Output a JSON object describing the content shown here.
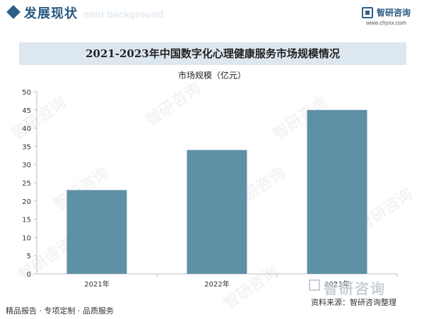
{
  "header": {
    "section_title": "发展现状",
    "section_title_ghost": "nent background",
    "brand_name": "智研咨询",
    "brand_url": "www.chyxx.com"
  },
  "watermark": {
    "text": "智研咨询"
  },
  "footer": {
    "left_text": "精品报告 · 专项定制 · 品质服务",
    "brand": "智研咨询",
    "source": "资料来源：智研咨询整理"
  },
  "colors": {
    "bar": "#5e90a6",
    "accent": "#2a5a82",
    "title_band": "#dde7ef"
  },
  "chart_data": {
    "type": "bar",
    "title": "2021-2023年中国数字化心理健康服务市场规模情况",
    "unit_label": "市场规模（亿元）",
    "categories": [
      "2021年",
      "2022年",
      "2023年"
    ],
    "values": [
      23,
      34,
      45
    ],
    "ylim": [
      0,
      50
    ],
    "yticks": [
      0,
      5,
      10,
      15,
      20,
      25,
      30,
      35,
      40,
      45,
      50
    ],
    "grid": false,
    "legend": "none"
  }
}
